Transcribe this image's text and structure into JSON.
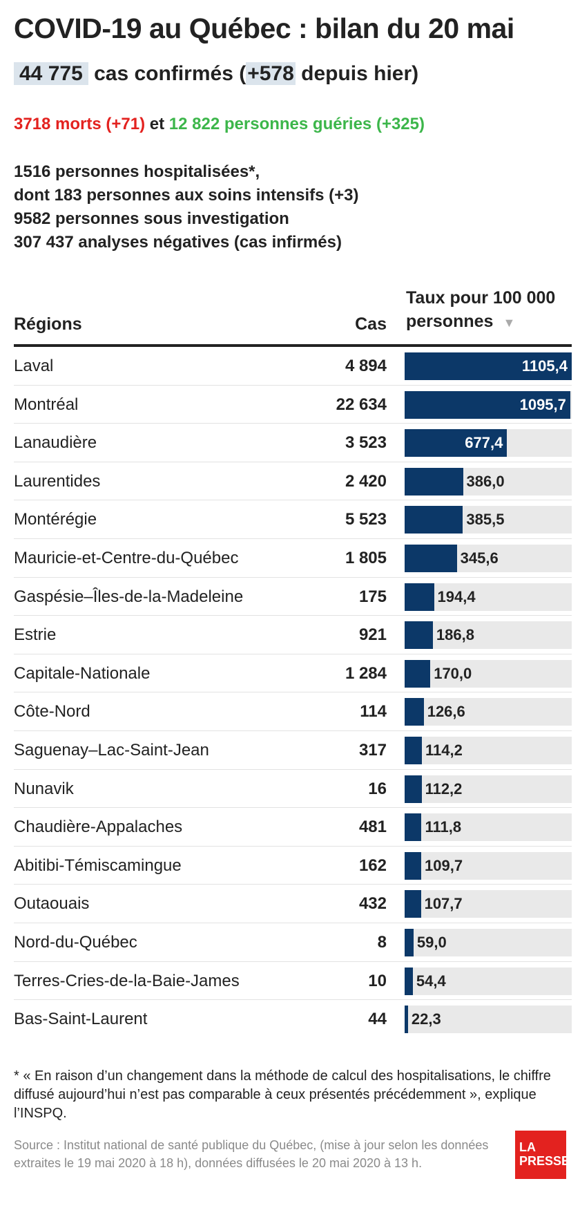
{
  "title": "COVID-19 au Québec : bilan du 20 mai",
  "confirmed": {
    "count": "44 775",
    "text": "cas confirmés (",
    "delta": "+578",
    "suffix": "depuis hier)"
  },
  "deaths": {
    "text": "3718 morts (+71)",
    "joiner": "et",
    "recovered": "12 822 personnes guéries (+325)"
  },
  "stats": [
    "1516 personnes hospitalisées*,",
    "dont 183 personnes aux soins intensifs (+3)",
    "9582 personnes sous investigation",
    "307 437 analyses négatives (cas infirmés)"
  ],
  "colors": {
    "bar": "#0c3868",
    "track": "#e9e9e9",
    "deaths": "#e3221f",
    "recovered": "#3cb64a",
    "highlight": "#dbe4ec"
  },
  "chart_data": {
    "type": "table",
    "columns": [
      "Régions",
      "Cas",
      "Taux pour 100 000 personnes"
    ],
    "sort_icon": "triangle-down-icon",
    "xlim": [
      0,
      1105.4
    ],
    "rows": [
      {
        "region": "Laval",
        "cases": "4 894",
        "rate": 1105.4,
        "rate_label": "1105,4"
      },
      {
        "region": "Montréal",
        "cases": "22 634",
        "rate": 1095.7,
        "rate_label": "1095,7"
      },
      {
        "region": "Lanaudière",
        "cases": "3 523",
        "rate": 677.4,
        "rate_label": "677,4"
      },
      {
        "region": "Laurentides",
        "cases": "2 420",
        "rate": 386.0,
        "rate_label": "386,0"
      },
      {
        "region": "Montérégie",
        "cases": "5 523",
        "rate": 385.5,
        "rate_label": "385,5"
      },
      {
        "region": "Mauricie-et-Centre-du-Québec",
        "cases": "1 805",
        "rate": 345.6,
        "rate_label": "345,6"
      },
      {
        "region": "Gaspésie–Îles-de-la-Madeleine",
        "cases": "175",
        "rate": 194.4,
        "rate_label": "194,4"
      },
      {
        "region": "Estrie",
        "cases": "921",
        "rate": 186.8,
        "rate_label": "186,8"
      },
      {
        "region": "Capitale-Nationale",
        "cases": "1 284",
        "rate": 170.0,
        "rate_label": "170,0"
      },
      {
        "region": "Côte-Nord",
        "cases": "114",
        "rate": 126.6,
        "rate_label": "126,6"
      },
      {
        "region": "Saguenay–Lac-Saint-Jean",
        "cases": "317",
        "rate": 114.2,
        "rate_label": "114,2"
      },
      {
        "region": "Nunavik",
        "cases": "16",
        "rate": 112.2,
        "rate_label": "112,2"
      },
      {
        "region": "Chaudière-Appalaches",
        "cases": "481",
        "rate": 111.8,
        "rate_label": "111,8"
      },
      {
        "region": "Abitibi-Témiscamingue",
        "cases": "162",
        "rate": 109.7,
        "rate_label": "109,7"
      },
      {
        "region": "Outaouais",
        "cases": "432",
        "rate": 107.7,
        "rate_label": "107,7"
      },
      {
        "region": "Nord-du-Québec",
        "cases": "8",
        "rate": 59.0,
        "rate_label": "59,0"
      },
      {
        "region": "Terres-Cries-de-la-Baie-James",
        "cases": "10",
        "rate": 54.4,
        "rate_label": "54,4"
      },
      {
        "region": "Bas-Saint-Laurent",
        "cases": "44",
        "rate": 22.3,
        "rate_label": "22,3"
      }
    ]
  },
  "footnote": "* « En raison d’un changement dans la méthode de calcul des hospitalisations, le chiffre diffusé aujourd’hui n’est pas comparable à ceux présentés précédemment », explique l’INSPQ.",
  "source": "Source : Institut national de santé publique du Québec, (mise à jour selon les données extraites le 19 mai 2020 à 18 h), données diffusées le 20 mai 2020 à 13 h.",
  "logo": {
    "line1": "LA",
    "line2": "PRESSE"
  }
}
